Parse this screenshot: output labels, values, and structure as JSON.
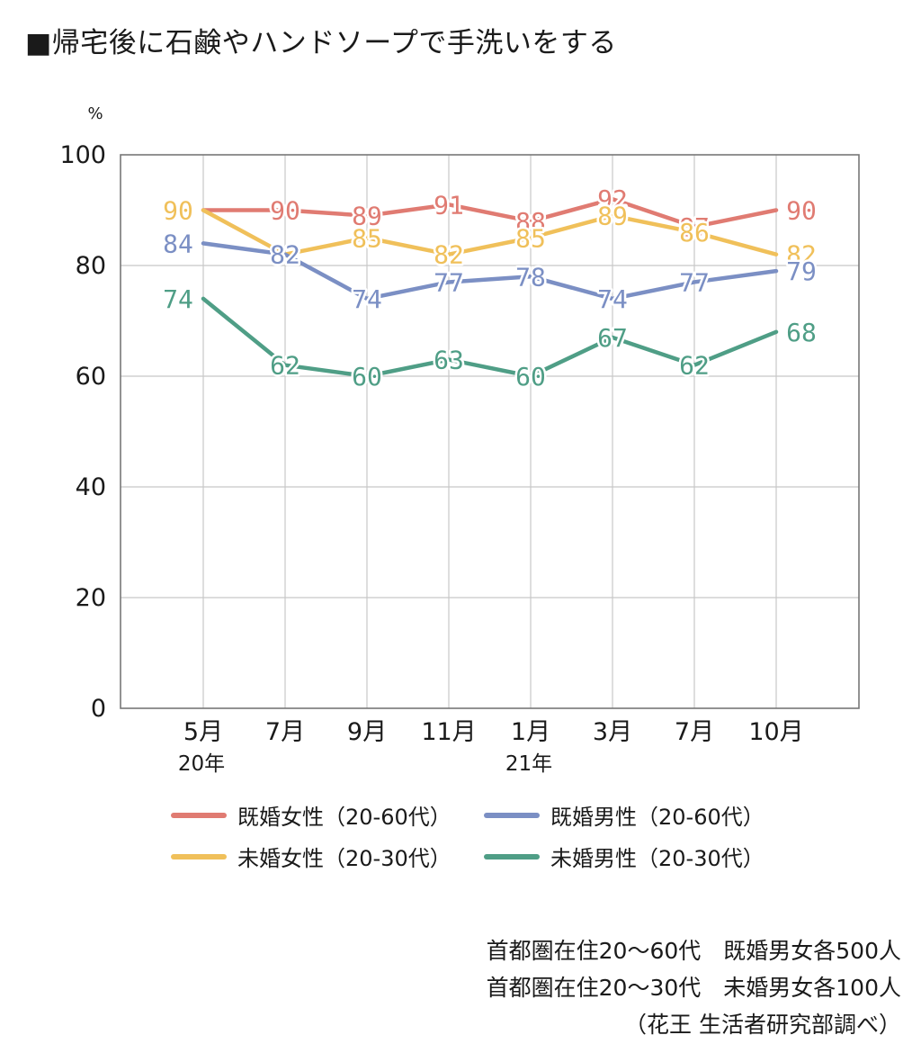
{
  "title": "■帰宅後に石鹸やハンドソープで手洗いをする",
  "colors": {
    "married_women": "#e07b72",
    "married_men": "#7b8fc4",
    "single_women": "#f0c05a",
    "single_men": "#4f9e86",
    "grid": "#c8c8c8",
    "axis": "#777777"
  },
  "chart_data": {
    "type": "line",
    "title": "■帰宅後に石鹸やハンドソープで手洗いをする",
    "ylabel": "%",
    "ylim": [
      0,
      100
    ],
    "yticks": [
      0,
      20,
      40,
      60,
      80,
      100
    ],
    "categories": [
      "5月",
      "7月",
      "9月",
      "11月",
      "1月",
      "3月",
      "7月",
      "10月"
    ],
    "year_labels": [
      {
        "index": 0,
        "label": "20年"
      },
      {
        "index": 4,
        "label": "21年"
      }
    ],
    "series": [
      {
        "key": "married_women",
        "name": "既婚女性（20-60代）",
        "values": [
          90,
          90,
          89,
          91,
          88,
          92,
          87,
          90
        ]
      },
      {
        "key": "single_women",
        "name": "未婚女性（20-30代）",
        "values": [
          90,
          82,
          85,
          82,
          85,
          89,
          86,
          82
        ]
      },
      {
        "key": "married_men",
        "name": "既婚男性（20-60代）",
        "values": [
          84,
          82,
          74,
          77,
          78,
          74,
          77,
          79
        ]
      },
      {
        "key": "single_men",
        "name": "未婚男性（20-30代）",
        "values": [
          74,
          62,
          60,
          63,
          60,
          67,
          62,
          68
        ]
      }
    ],
    "grid": true
  },
  "legend": [
    {
      "key": "married_women",
      "label": "既婚女性（20-60代）"
    },
    {
      "key": "married_men",
      "label": "既婚男性（20-60代）"
    },
    {
      "key": "single_women",
      "label": "未婚女性（20-30代）"
    },
    {
      "key": "single_men",
      "label": "未婚男性（20-30代）"
    }
  ],
  "notes": [
    "首都圏在住20〜60代　既婚男女各500人",
    "首都圏在住20〜30代　未婚男女各100人",
    "（花王 生活者研究部調べ）"
  ]
}
